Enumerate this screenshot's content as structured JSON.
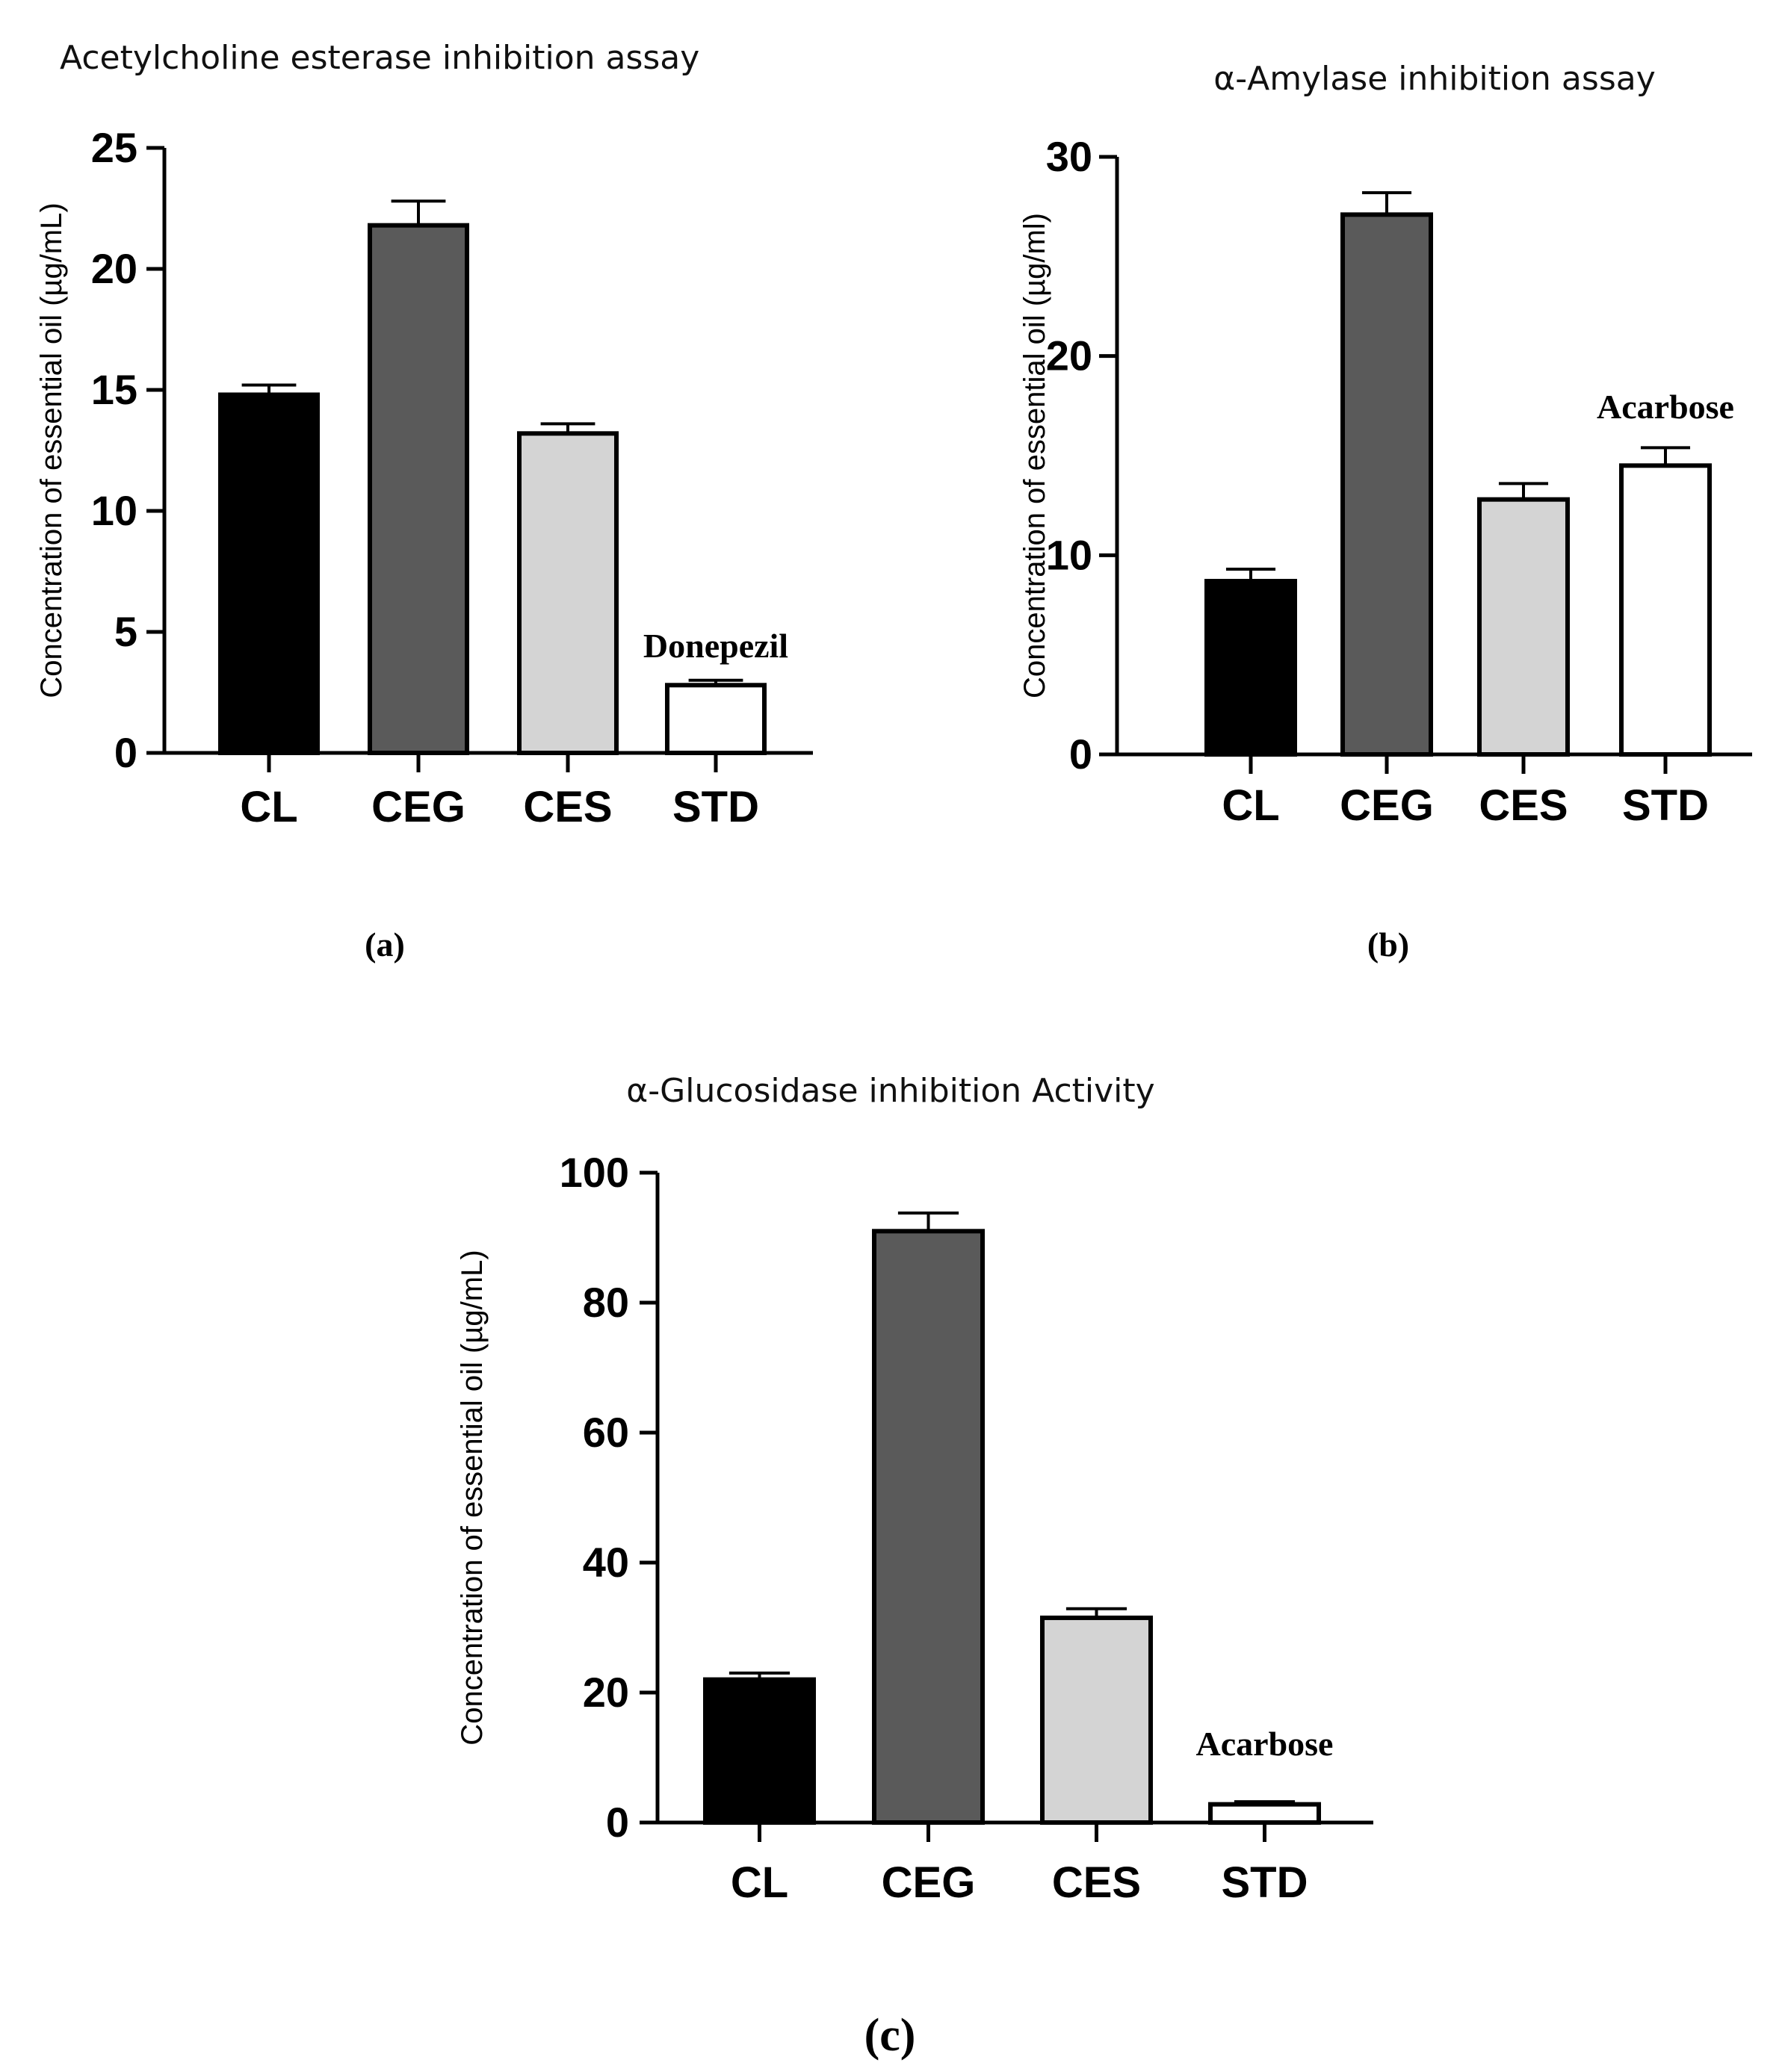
{
  "chart_data": [
    {
      "type": "bar",
      "panel_label": "(a)",
      "title": "Acetylcholine esterase inhibition assay",
      "ylabel": "Concentration of essential oil (µg/mL)",
      "xlabel": "",
      "categories": [
        "CL",
        "CEG",
        "CES",
        "STD"
      ],
      "values": [
        14.8,
        21.8,
        13.2,
        2.8
      ],
      "errors": [
        0.4,
        1.0,
        0.4,
        0.2
      ],
      "colors": [
        "#000000",
        "#5a5a5a",
        "#d4d4d4",
        "#ffffff"
      ],
      "ylim": [
        0,
        25
      ],
      "yticks": [
        "0",
        "5",
        "10",
        "15",
        "20",
        "25"
      ],
      "grid": false,
      "annotation": {
        "text": "Donepezil",
        "category": "STD"
      }
    },
    {
      "type": "bar",
      "panel_label": "(b)",
      "title": "α-Amylase inhibition assay",
      "ylabel": "Concentration of essential oil (µg/ml)",
      "xlabel": "",
      "categories": [
        "CL",
        "CEG",
        "CES",
        "STD"
      ],
      "values": [
        8.7,
        27.1,
        12.8,
        14.5
      ],
      "errors": [
        0.6,
        1.1,
        0.8,
        0.9
      ],
      "colors": [
        "#000000",
        "#5a5a5a",
        "#d4d4d4",
        "#ffffff"
      ],
      "ylim": [
        0,
        30
      ],
      "yticks": [
        "0",
        "10",
        "20",
        "30"
      ],
      "grid": false,
      "annotation": {
        "text": "Acarbose",
        "category": "STD"
      }
    },
    {
      "type": "bar",
      "panel_label": "(c)",
      "title": "α-Glucosidase inhibition Activity",
      "ylabel": "Concentration of essential oil (µg/mL)",
      "xlabel": "",
      "categories": [
        "CL",
        "CEG",
        "CES",
        "STD"
      ],
      "values": [
        22.0,
        91.0,
        31.5,
        2.8
      ],
      "errors": [
        1.0,
        2.8,
        1.4,
        0.4
      ],
      "colors": [
        "#000000",
        "#5a5a5a",
        "#d4d4d4",
        "#ffffff"
      ],
      "ylim": [
        0,
        100
      ],
      "yticks": [
        "0",
        "20",
        "40",
        "60",
        "80",
        "100"
      ],
      "grid": false,
      "annotation": {
        "text": "Acarbose",
        "category": "STD"
      }
    }
  ]
}
